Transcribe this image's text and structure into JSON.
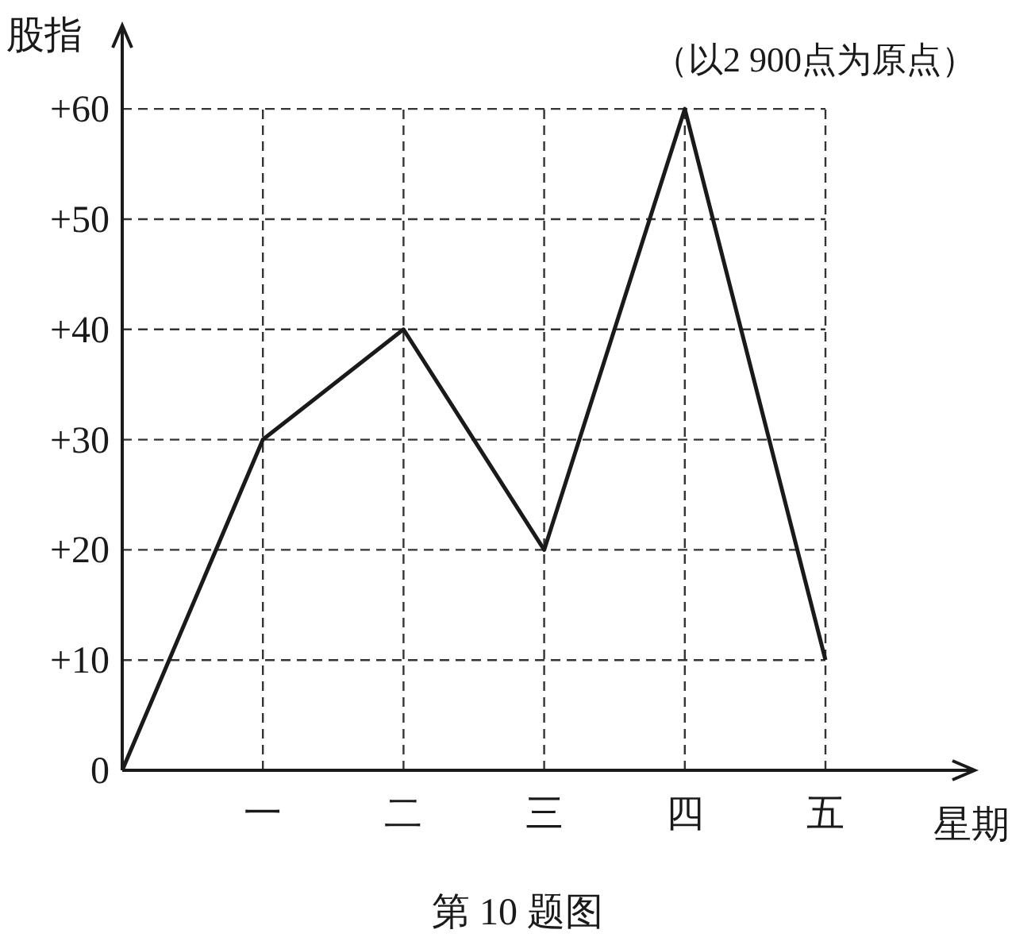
{
  "chart_data": {
    "type": "line",
    "xlabel": "星期",
    "ylabel": "股指",
    "categories": [
      null,
      "一",
      "二",
      "三",
      "四",
      "五"
    ],
    "series": [
      {
        "color": "#1a1a1a",
        "values": [
          0,
          30,
          40,
          20,
          60,
          10
        ]
      }
    ],
    "ylim": [
      0,
      67
    ],
    "yticks": [
      0,
      {
        "value": 10,
        "label": "+10"
      },
      {
        "value": 20,
        "label": "+20"
      },
      {
        "value": 30,
        "label": "+30"
      },
      {
        "value": 40,
        "label": "+40"
      },
      {
        "value": 50,
        "label": "+50"
      },
      {
        "value": 60,
        "label": "+60"
      }
    ],
    "grid": true,
    "line_style": "solid",
    "annotations": [
      "（以2 900点为原点）",
      "第 10 题图"
    ]
  }
}
